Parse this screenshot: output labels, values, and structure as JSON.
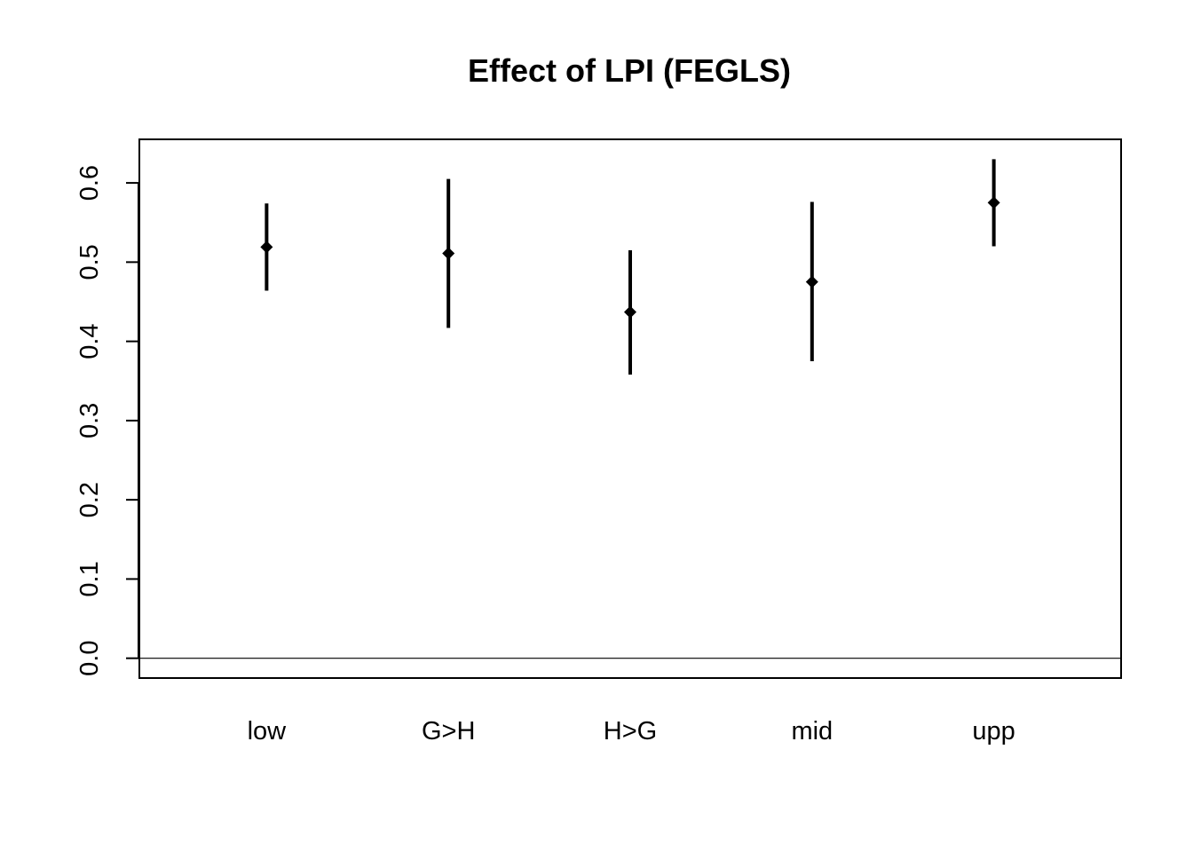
{
  "chart_data": {
    "type": "scatter",
    "title": "Effect of LPI (FEGLS)",
    "xlabel": "",
    "ylabel": "",
    "categories": [
      "low",
      "G>H",
      "H>G",
      "mid",
      "upp"
    ],
    "series": [
      {
        "estimate": [
          0.519,
          0.511,
          0.437,
          0.475,
          0.575
        ],
        "lower": [
          0.464,
          0.417,
          0.358,
          0.375,
          0.52
        ],
        "upper": [
          0.574,
          0.605,
          0.515,
          0.576,
          0.63
        ]
      }
    ],
    "ylim": [
      -0.025,
      0.655
    ],
    "yticks": [
      0.0,
      0.1,
      0.2,
      0.3,
      0.4,
      0.5,
      0.6
    ],
    "ytick_labels": [
      "0.0",
      "0.1",
      "0.2",
      "0.3",
      "0.4",
      "0.5",
      "0.6"
    ],
    "reference_line": 0.0,
    "grid": false,
    "marker": "diamond",
    "colors": {
      "marks": "#000000",
      "axes": "#000000",
      "background": "#ffffff"
    }
  }
}
